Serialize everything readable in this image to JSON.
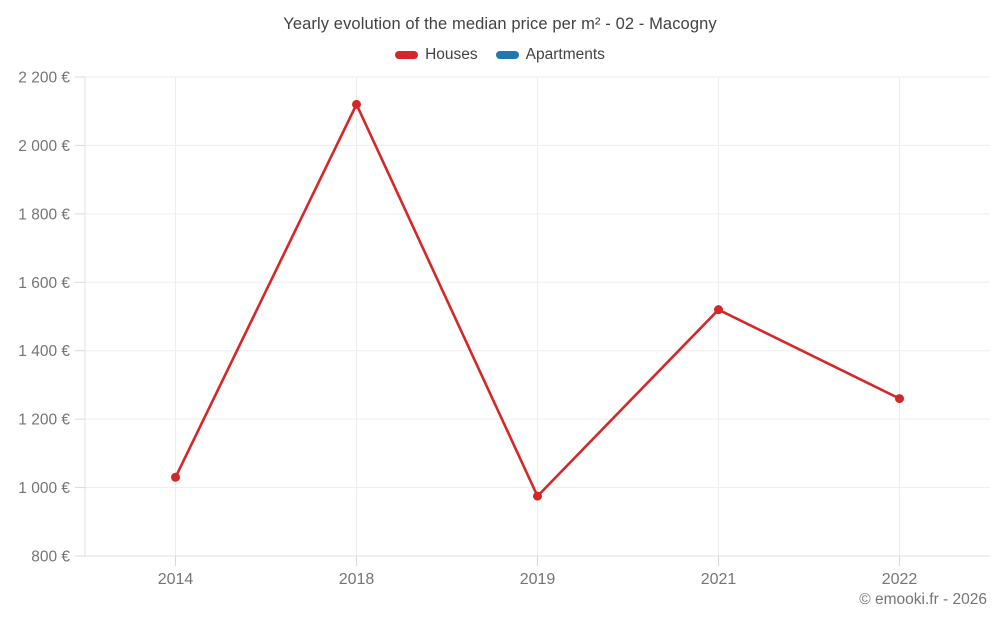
{
  "chart": {
    "title": "Yearly evolution of the median price per m² - 02 - Macogny",
    "legend": [
      {
        "label": "Houses",
        "color": "#d62728"
      },
      {
        "label": "Apartments",
        "color": "#1f77b4"
      }
    ]
  },
  "chart_data": {
    "type": "line",
    "title": "Yearly evolution of the median price per m² - 02 - Macogny",
    "categories": [
      "2014",
      "2018",
      "2019",
      "2021",
      "2022"
    ],
    "series": [
      {
        "name": "Houses",
        "color": "#d62728",
        "values": [
          1030,
          2120,
          975,
          1520,
          1260
        ]
      },
      {
        "name": "Apartments",
        "color": "#1f77b4",
        "values": []
      }
    ],
    "xlabel": "",
    "ylabel": "",
    "ylim": [
      800,
      2200
    ],
    "ytick_step": 200,
    "ytick_labels": [
      "800 €",
      "1 000 €",
      "1 200 €",
      "1 400 €",
      "1 600 €",
      "1 800 €",
      "2 000 €",
      "2 200 €"
    ],
    "grid": true,
    "legend_position": "top",
    "currency_suffix": "€"
  },
  "footer": {
    "copyright": "© emooki.fr - 2026"
  },
  "colors": {
    "houses": "#d62728",
    "apartments": "#1f77b4",
    "grid_line": "#ededed",
    "axis_line": "#e2e2e2",
    "tick_mark": "#d9d9d9",
    "axis_text": "#757575",
    "title_text": "#424242"
  }
}
